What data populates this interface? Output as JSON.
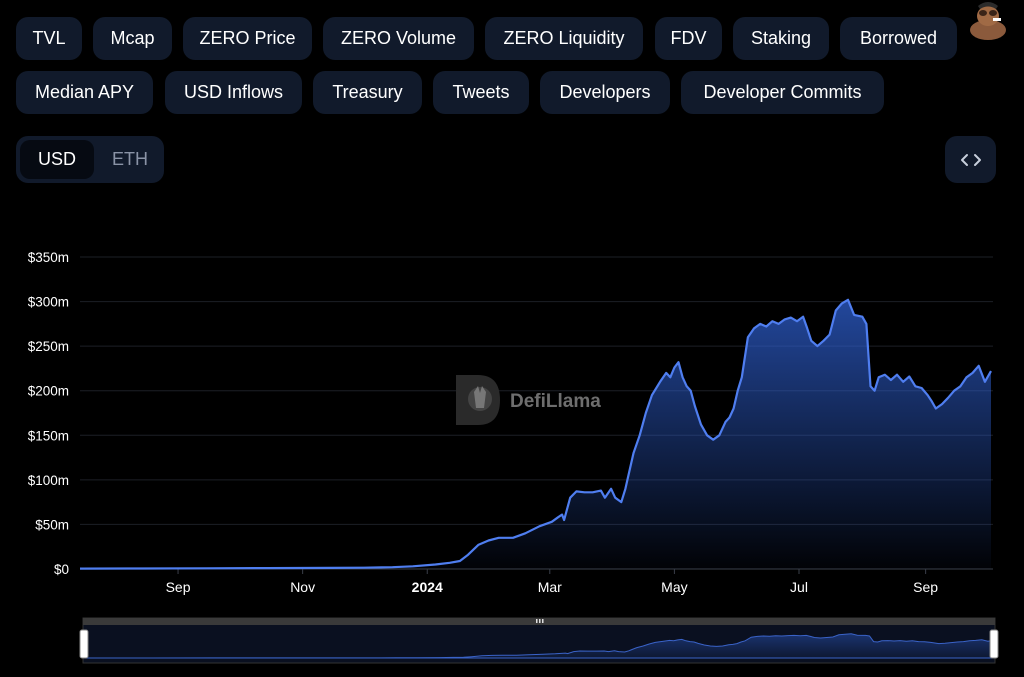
{
  "metric_tabs": [
    {
      "label": "TVL",
      "active": true
    },
    {
      "label": "Mcap"
    },
    {
      "label": "ZERO Price"
    },
    {
      "label": "ZERO Volume"
    },
    {
      "label": "ZERO Liquidity"
    },
    {
      "label": "FDV"
    },
    {
      "label": "Staking"
    },
    {
      "label": "Borrowed"
    },
    {
      "label": "Median APY"
    },
    {
      "label": "USD Inflows"
    },
    {
      "label": "Treasury"
    },
    {
      "label": "Tweets"
    },
    {
      "label": "Developers"
    },
    {
      "label": "Developer Commits"
    }
  ],
  "currency_toggle": {
    "options": [
      "USD",
      "ETH"
    ],
    "selected": "USD"
  },
  "embed_button": {
    "icon": "code-brackets-icon"
  },
  "watermark": {
    "text": "DefiLlama"
  },
  "colors": {
    "accent": "#4f7ef0",
    "tab_bg": "#111a2b",
    "tab_active": "#2a4b8d"
  },
  "chart_data": {
    "type": "area",
    "ylim": [
      0,
      350
    ],
    "yticks": [
      0,
      50,
      100,
      150,
      200,
      250,
      300,
      350
    ],
    "ytick_labels": [
      "$0",
      "$50m",
      "$100m",
      "$150m",
      "$200m",
      "$250m",
      "$300m",
      "$350m"
    ],
    "x_range": [
      "2023-07-15",
      "2024-10-03"
    ],
    "xticks": [
      {
        "date": "2023-09-01",
        "label": "Sep"
      },
      {
        "date": "2023-11-01",
        "label": "Nov"
      },
      {
        "date": "2024-01-01",
        "label": "2024",
        "bold": true
      },
      {
        "date": "2024-03-01",
        "label": "Mar"
      },
      {
        "date": "2024-05-01",
        "label": "May"
      },
      {
        "date": "2024-07-01",
        "label": "Jul"
      },
      {
        "date": "2024-09-01",
        "label": "Sep"
      }
    ],
    "grid": true,
    "series": [
      {
        "values": [
          [
            "2023-07-15",
            0.5
          ],
          [
            "2023-08-15",
            0.6
          ],
          [
            "2023-09-15",
            0.8
          ],
          [
            "2023-10-15",
            1.0
          ],
          [
            "2023-11-15",
            1.2
          ],
          [
            "2023-12-01",
            1.5
          ],
          [
            "2023-12-15",
            2.0
          ],
          [
            "2023-12-25",
            3.0
          ],
          [
            "2024-01-05",
            5.0
          ],
          [
            "2024-01-12",
            7.0
          ],
          [
            "2024-01-17",
            9.0
          ],
          [
            "2024-01-21",
            16.0
          ],
          [
            "2024-01-26",
            27.0
          ],
          [
            "2024-01-31",
            32.0
          ],
          [
            "2024-02-05",
            35.0
          ],
          [
            "2024-02-12",
            35.0
          ],
          [
            "2024-02-18",
            40.0
          ],
          [
            "2024-02-25",
            48.0
          ],
          [
            "2024-03-02",
            53.0
          ],
          [
            "2024-03-05",
            58.0
          ],
          [
            "2024-03-07",
            61.0
          ],
          [
            "2024-03-08",
            55.0
          ],
          [
            "2024-03-11",
            80.0
          ],
          [
            "2024-03-14",
            87.0
          ],
          [
            "2024-03-18",
            86.0
          ],
          [
            "2024-03-22",
            86.0
          ],
          [
            "2024-03-26",
            88.0
          ],
          [
            "2024-03-28",
            80.0
          ],
          [
            "2024-03-31",
            90.0
          ],
          [
            "2024-04-02",
            80.0
          ],
          [
            "2024-04-05",
            75.0
          ],
          [
            "2024-04-07",
            90.0
          ],
          [
            "2024-04-08",
            100.0
          ],
          [
            "2024-04-11",
            130.0
          ],
          [
            "2024-04-14",
            150.0
          ],
          [
            "2024-04-17",
            175.0
          ],
          [
            "2024-04-20",
            195.0
          ],
          [
            "2024-04-24",
            210.0
          ],
          [
            "2024-04-27",
            220.0
          ],
          [
            "2024-04-29",
            215.0
          ],
          [
            "2024-05-01",
            226.0
          ],
          [
            "2024-05-03",
            232.0
          ],
          [
            "2024-05-05",
            215.0
          ],
          [
            "2024-05-07",
            205.0
          ],
          [
            "2024-05-09",
            200.0
          ],
          [
            "2024-05-11",
            183.0
          ],
          [
            "2024-05-14",
            162.0
          ],
          [
            "2024-05-17",
            150.0
          ],
          [
            "2024-05-20",
            145.0
          ],
          [
            "2024-05-23",
            150.0
          ],
          [
            "2024-05-26",
            165.0
          ],
          [
            "2024-05-28",
            170.0
          ],
          [
            "2024-05-30",
            180.0
          ],
          [
            "2024-06-01",
            200.0
          ],
          [
            "2024-06-03",
            215.0
          ],
          [
            "2024-06-06",
            260.0
          ],
          [
            "2024-06-09",
            270.0
          ],
          [
            "2024-06-12",
            275.0
          ],
          [
            "2024-06-15",
            272.0
          ],
          [
            "2024-06-18",
            278.0
          ],
          [
            "2024-06-21",
            275.0
          ],
          [
            "2024-06-24",
            280.0
          ],
          [
            "2024-06-27",
            282.0
          ],
          [
            "2024-06-30",
            278.0
          ],
          [
            "2024-07-03",
            283.0
          ],
          [
            "2024-07-05",
            270.0
          ],
          [
            "2024-07-07",
            256.0
          ],
          [
            "2024-07-10",
            250.0
          ],
          [
            "2024-07-13",
            256.0
          ],
          [
            "2024-07-16",
            263.0
          ],
          [
            "2024-07-19",
            290.0
          ],
          [
            "2024-07-22",
            298.0
          ],
          [
            "2024-07-25",
            302.0
          ],
          [
            "2024-07-28",
            285.0
          ],
          [
            "2024-08-01",
            283.0
          ],
          [
            "2024-08-03",
            275.0
          ],
          [
            "2024-08-05",
            205.0
          ],
          [
            "2024-08-07",
            200.0
          ],
          [
            "2024-08-09",
            215.0
          ],
          [
            "2024-08-12",
            218.0
          ],
          [
            "2024-08-15",
            212.0
          ],
          [
            "2024-08-18",
            218.0
          ],
          [
            "2024-08-21",
            210.0
          ],
          [
            "2024-08-24",
            216.0
          ],
          [
            "2024-08-27",
            205.0
          ],
          [
            "2024-08-30",
            203.0
          ],
          [
            "2024-09-02",
            195.0
          ],
          [
            "2024-09-04",
            188.0
          ],
          [
            "2024-09-06",
            180.0
          ],
          [
            "2024-09-09",
            185.0
          ],
          [
            "2024-09-12",
            192.0
          ],
          [
            "2024-09-15",
            200.0
          ],
          [
            "2024-09-18",
            205.0
          ],
          [
            "2024-09-21",
            215.0
          ],
          [
            "2024-09-24",
            220.0
          ],
          [
            "2024-09-27",
            228.0
          ],
          [
            "2024-09-30",
            210.0
          ],
          [
            "2024-10-03",
            222.0
          ]
        ]
      }
    ]
  }
}
